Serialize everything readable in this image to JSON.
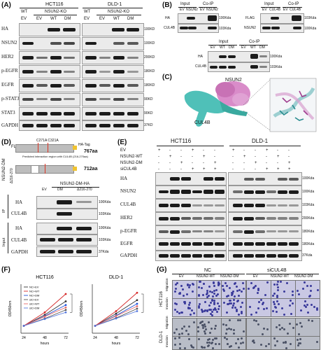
{
  "panels": {
    "A": "(A)",
    "B": "(B)",
    "C": "(C)",
    "D": "(D)",
    "E": "(E)",
    "F": "(F)",
    "G": "(G)"
  },
  "A": {
    "cell_lines": [
      "HCT116",
      "DLD-1"
    ],
    "group_top": [
      "WT",
      "NSUN2-KO",
      "WT",
      "NSUN2-KO"
    ],
    "lanes": [
      "EV",
      "EV",
      "WT",
      "DM",
      "EV",
      "EV",
      "WT",
      "DM"
    ],
    "rows": [
      "HA",
      "NSUN2",
      "HER2",
      "p-EGFR",
      "EGFR",
      "p-STAT3",
      "STAT3",
      "GAPDH"
    ],
    "mw": [
      "100KD",
      "100KD",
      "200KD",
      "180KD",
      "180KD",
      "90KD",
      "90KD",
      "37KD"
    ]
  },
  "B": {
    "top_left": {
      "headers": [
        "Input",
        "Co-IP"
      ],
      "lanes": [
        "EV",
        "NSUN2",
        "EV",
        "NSUN2"
      ],
      "rows": [
        "HA",
        "CUL4B"
      ],
      "mw": [
        "100Kda",
        "103Kda"
      ]
    },
    "top_right": {
      "headers": [
        "Input",
        "Co-IP"
      ],
      "lanes": [
        "EV",
        "CUL4B",
        "EV",
        "CUL4B"
      ],
      "rows": [
        "FLAG",
        "NSUN2"
      ],
      "mw": [
        "103Kda",
        "100Kda"
      ]
    },
    "bottom": {
      "headers": [
        "Input",
        "Co-IP"
      ],
      "lanes": [
        "EV",
        "WT",
        "DM",
        "EV",
        "WT",
        "DM"
      ],
      "rows": [
        "HA",
        "CUL4B"
      ],
      "mw": [
        "100Kda",
        "103Kda"
      ]
    }
  },
  "C": {
    "labels": [
      "NSUN2",
      "CUL4B"
    ]
  },
  "D": {
    "construct_name": "NSUN2-DM",
    "fl": "FL",
    "del": "Δ216-270",
    "mutations": "C271A  C321A",
    "tag": "HA-Tag",
    "aa_fl": "767aa",
    "aa_del": "712aa",
    "note": "Predicted interaction region with CUL4B (216-270aa)",
    "blot_title": "NSUN2-DM-HA",
    "lanes": [
      "EV",
      "DM",
      "Δ216-270"
    ],
    "ip_label": "IP",
    "input_label": "Input",
    "rows": [
      "HA",
      "CUL4B",
      "HA",
      "CUL4B",
      "GAPDH"
    ],
    "mw": [
      "100Kda",
      "103Kda",
      "100Kda",
      "103Kda",
      "37Kda"
    ]
  },
  "E": {
    "cell_lines": [
      "HCT116",
      "DLD-1"
    ],
    "conditions": [
      "EV",
      "NSUN2-WT",
      "NSUN2-DM",
      "siCULL4B"
    ],
    "signs": {
      "EV": [
        "+",
        "-",
        "-",
        "+",
        "-",
        "-"
      ],
      "NSUN2-WT": [
        "-",
        "+",
        "-",
        "-",
        "+",
        "-"
      ],
      "NSUN2-DM": [
        "-",
        "-",
        "+",
        "-",
        "-",
        "+"
      ],
      "siCUL4B": [
        "-",
        "-",
        "-",
        "+",
        "+",
        "+"
      ]
    },
    "cond_labels": [
      "EV",
      "NSUN2-WT",
      "NSUN2-DM",
      "siCUL4B"
    ],
    "rows": [
      "HA",
      "NSUN2",
      "CUL4B",
      "HER2",
      "p-EGFR",
      "EGFR",
      "GAPDH"
    ],
    "mw": [
      "100Kda",
      "100Kda",
      "103Kda",
      "200Kda",
      "180Kda",
      "180Kda",
      "37Kda"
    ]
  },
  "F": {
    "charts": [
      {
        "title": "HCT116",
        "xlabel": "hours",
        "ylabel": "OD450nm",
        "x": [
          24,
          48,
          72
        ],
        "legend": [
          "NC+EV",
          "NC+WT",
          "NC+DM",
          "siC+EV",
          "siC+WT",
          "siC+DM"
        ]
      },
      {
        "title": "DLD-1",
        "xlabel": "hours",
        "ylabel": "OD450nm",
        "x": [
          24,
          48,
          72
        ],
        "legend": []
      }
    ]
  },
  "G": {
    "groups": [
      "NC",
      "siCUL4B"
    ],
    "cols": [
      "EV",
      "NSUN2-WT",
      "NSUN2-DM",
      "EV",
      "NSUN2-WT",
      "NSUN2-DM"
    ],
    "rows": [
      {
        "line": "HCT116",
        "sub": [
          "Migration",
          "Invasion"
        ]
      },
      {
        "line": "DLD-1",
        "sub": [
          "Migration",
          "Invasion"
        ]
      }
    ]
  },
  "chart_data": [
    {
      "type": "line",
      "title": "HCT116",
      "xlabel": "hours",
      "ylabel": "OD450nm",
      "x": [
        24,
        48,
        72
      ],
      "series": [
        {
          "name": "NC+EV",
          "values": [
            0.3,
            0.75,
            1.3
          ],
          "color": "#333333"
        },
        {
          "name": "NC+WT",
          "values": [
            0.3,
            0.85,
            1.6
          ],
          "color": "#d62828"
        },
        {
          "name": "NC+DM",
          "values": [
            0.3,
            0.7,
            1.15
          ],
          "color": "#1d4fd8"
        },
        {
          "name": "siC+EV",
          "values": [
            0.3,
            0.6,
            0.95
          ],
          "color": "#555555"
        },
        {
          "name": "siC+WT",
          "values": [
            0.3,
            0.68,
            1.05
          ],
          "color": "#e66a6a"
        },
        {
          "name": "siC+DM",
          "values": [
            0.3,
            0.58,
            0.85
          ],
          "color": "#5577dd"
        }
      ]
    },
    {
      "type": "line",
      "title": "DLD-1",
      "xlabel": "hours",
      "ylabel": "OD450nm",
      "x": [
        24,
        48,
        72
      ],
      "series": [
        {
          "values": [
            0.3,
            0.8,
            1.35
          ],
          "color": "#333333"
        },
        {
          "values": [
            0.3,
            0.9,
            1.65
          ],
          "color": "#d62828"
        },
        {
          "values": [
            0.3,
            0.72,
            1.2
          ],
          "color": "#1d4fd8"
        },
        {
          "values": [
            0.3,
            0.62,
            1.0
          ],
          "color": "#555555"
        },
        {
          "values": [
            0.3,
            0.7,
            1.1
          ],
          "color": "#e66a6a"
        },
        {
          "values": [
            0.3,
            0.6,
            0.9
          ],
          "color": "#5577dd"
        }
      ]
    }
  ]
}
